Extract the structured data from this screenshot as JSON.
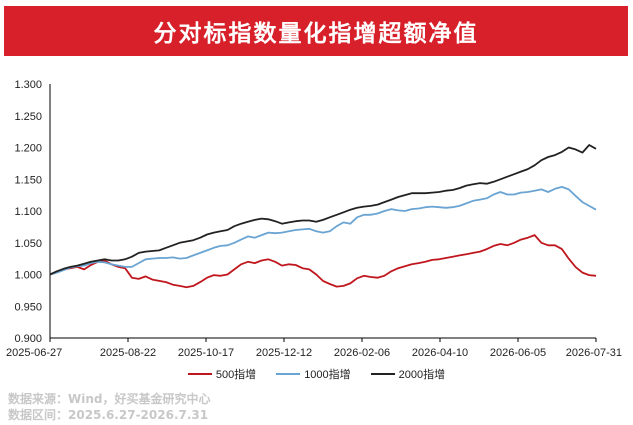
{
  "header": {
    "title": "分对标指数量化指增超额净值"
  },
  "chart_data": {
    "type": "line",
    "ylim": [
      0.9,
      1.3
    ],
    "yticks": [
      "1.300",
      "1.250",
      "1.200",
      "1.150",
      "1.100",
      "1.050",
      "1.000",
      "0.950",
      "0.900"
    ],
    "xticks": [
      "2025-06-27",
      "2025-08-22",
      "2025-10-17",
      "2025-12-12",
      "2026-02-06",
      "2026-04-10",
      "2026-06-05",
      "2026-07-31"
    ],
    "series": [
      {
        "name": "500指增",
        "color": "#c0161d",
        "values": [
          1.0,
          1.004,
          1.008,
          1.01,
          1.012,
          1.008,
          1.015,
          1.02,
          1.022,
          1.016,
          1.012,
          1.01,
          0.995,
          0.993,
          0.997,
          0.992,
          0.99,
          0.988,
          0.984,
          0.982,
          0.98,
          0.982,
          0.988,
          0.995,
          0.999,
          0.998,
          1.0,
          1.008,
          1.016,
          1.02,
          1.018,
          1.022,
          1.024,
          1.02,
          1.014,
          1.016,
          1.015,
          1.01,
          1.008,
          1.0,
          0.99,
          0.985,
          0.981,
          0.982,
          0.986,
          0.994,
          0.998,
          0.996,
          0.995,
          0.998,
          1.005,
          1.01,
          1.013,
          1.016,
          1.018,
          1.02,
          1.023,
          1.024,
          1.026,
          1.028,
          1.03,
          1.032,
          1.034,
          1.036,
          1.04,
          1.045,
          1.048,
          1.046,
          1.05,
          1.055,
          1.058,
          1.062,
          1.05,
          1.046,
          1.046,
          1.04,
          1.025,
          1.012,
          1.003,
          0.999,
          0.998
        ]
      },
      {
        "name": "1000指增",
        "color": "#6aa4d2",
        "values": [
          1.0,
          1.003,
          1.007,
          1.011,
          1.013,
          1.014,
          1.018,
          1.02,
          1.019,
          1.016,
          1.014,
          1.012,
          1.012,
          1.018,
          1.024,
          1.025,
          1.026,
          1.026,
          1.027,
          1.025,
          1.026,
          1.03,
          1.034,
          1.038,
          1.042,
          1.045,
          1.046,
          1.05,
          1.055,
          1.06,
          1.058,
          1.062,
          1.066,
          1.065,
          1.066,
          1.068,
          1.07,
          1.071,
          1.072,
          1.068,
          1.066,
          1.068,
          1.076,
          1.082,
          1.08,
          1.09,
          1.094,
          1.094,
          1.096,
          1.1,
          1.103,
          1.101,
          1.1,
          1.103,
          1.104,
          1.106,
          1.107,
          1.106,
          1.105,
          1.106,
          1.108,
          1.112,
          1.116,
          1.118,
          1.12,
          1.126,
          1.13,
          1.126,
          1.126,
          1.129,
          1.13,
          1.132,
          1.134,
          1.13,
          1.135,
          1.138,
          1.134,
          1.124,
          1.114,
          1.108,
          1.102
        ]
      },
      {
        "name": "2000指增",
        "color": "#222222",
        "values": [
          1.0,
          1.005,
          1.009,
          1.012,
          1.014,
          1.017,
          1.02,
          1.022,
          1.024,
          1.022,
          1.022,
          1.024,
          1.028,
          1.034,
          1.036,
          1.037,
          1.038,
          1.042,
          1.046,
          1.05,
          1.052,
          1.054,
          1.058,
          1.063,
          1.066,
          1.068,
          1.07,
          1.076,
          1.08,
          1.083,
          1.086,
          1.088,
          1.087,
          1.084,
          1.08,
          1.082,
          1.084,
          1.085,
          1.085,
          1.083,
          1.086,
          1.09,
          1.094,
          1.098,
          1.102,
          1.105,
          1.107,
          1.108,
          1.11,
          1.114,
          1.118,
          1.122,
          1.125,
          1.128,
          1.128,
          1.128,
          1.129,
          1.13,
          1.132,
          1.133,
          1.136,
          1.14,
          1.142,
          1.144,
          1.143,
          1.146,
          1.15,
          1.154,
          1.158,
          1.162,
          1.166,
          1.172,
          1.18,
          1.185,
          1.188,
          1.193,
          1.2,
          1.197,
          1.192,
          1.204,
          1.198
        ]
      }
    ]
  },
  "source": {
    "line1": "数据来源：Wind，好买基金研究中心",
    "line2": "数据区间：2025.6.27-2026.7.31"
  }
}
